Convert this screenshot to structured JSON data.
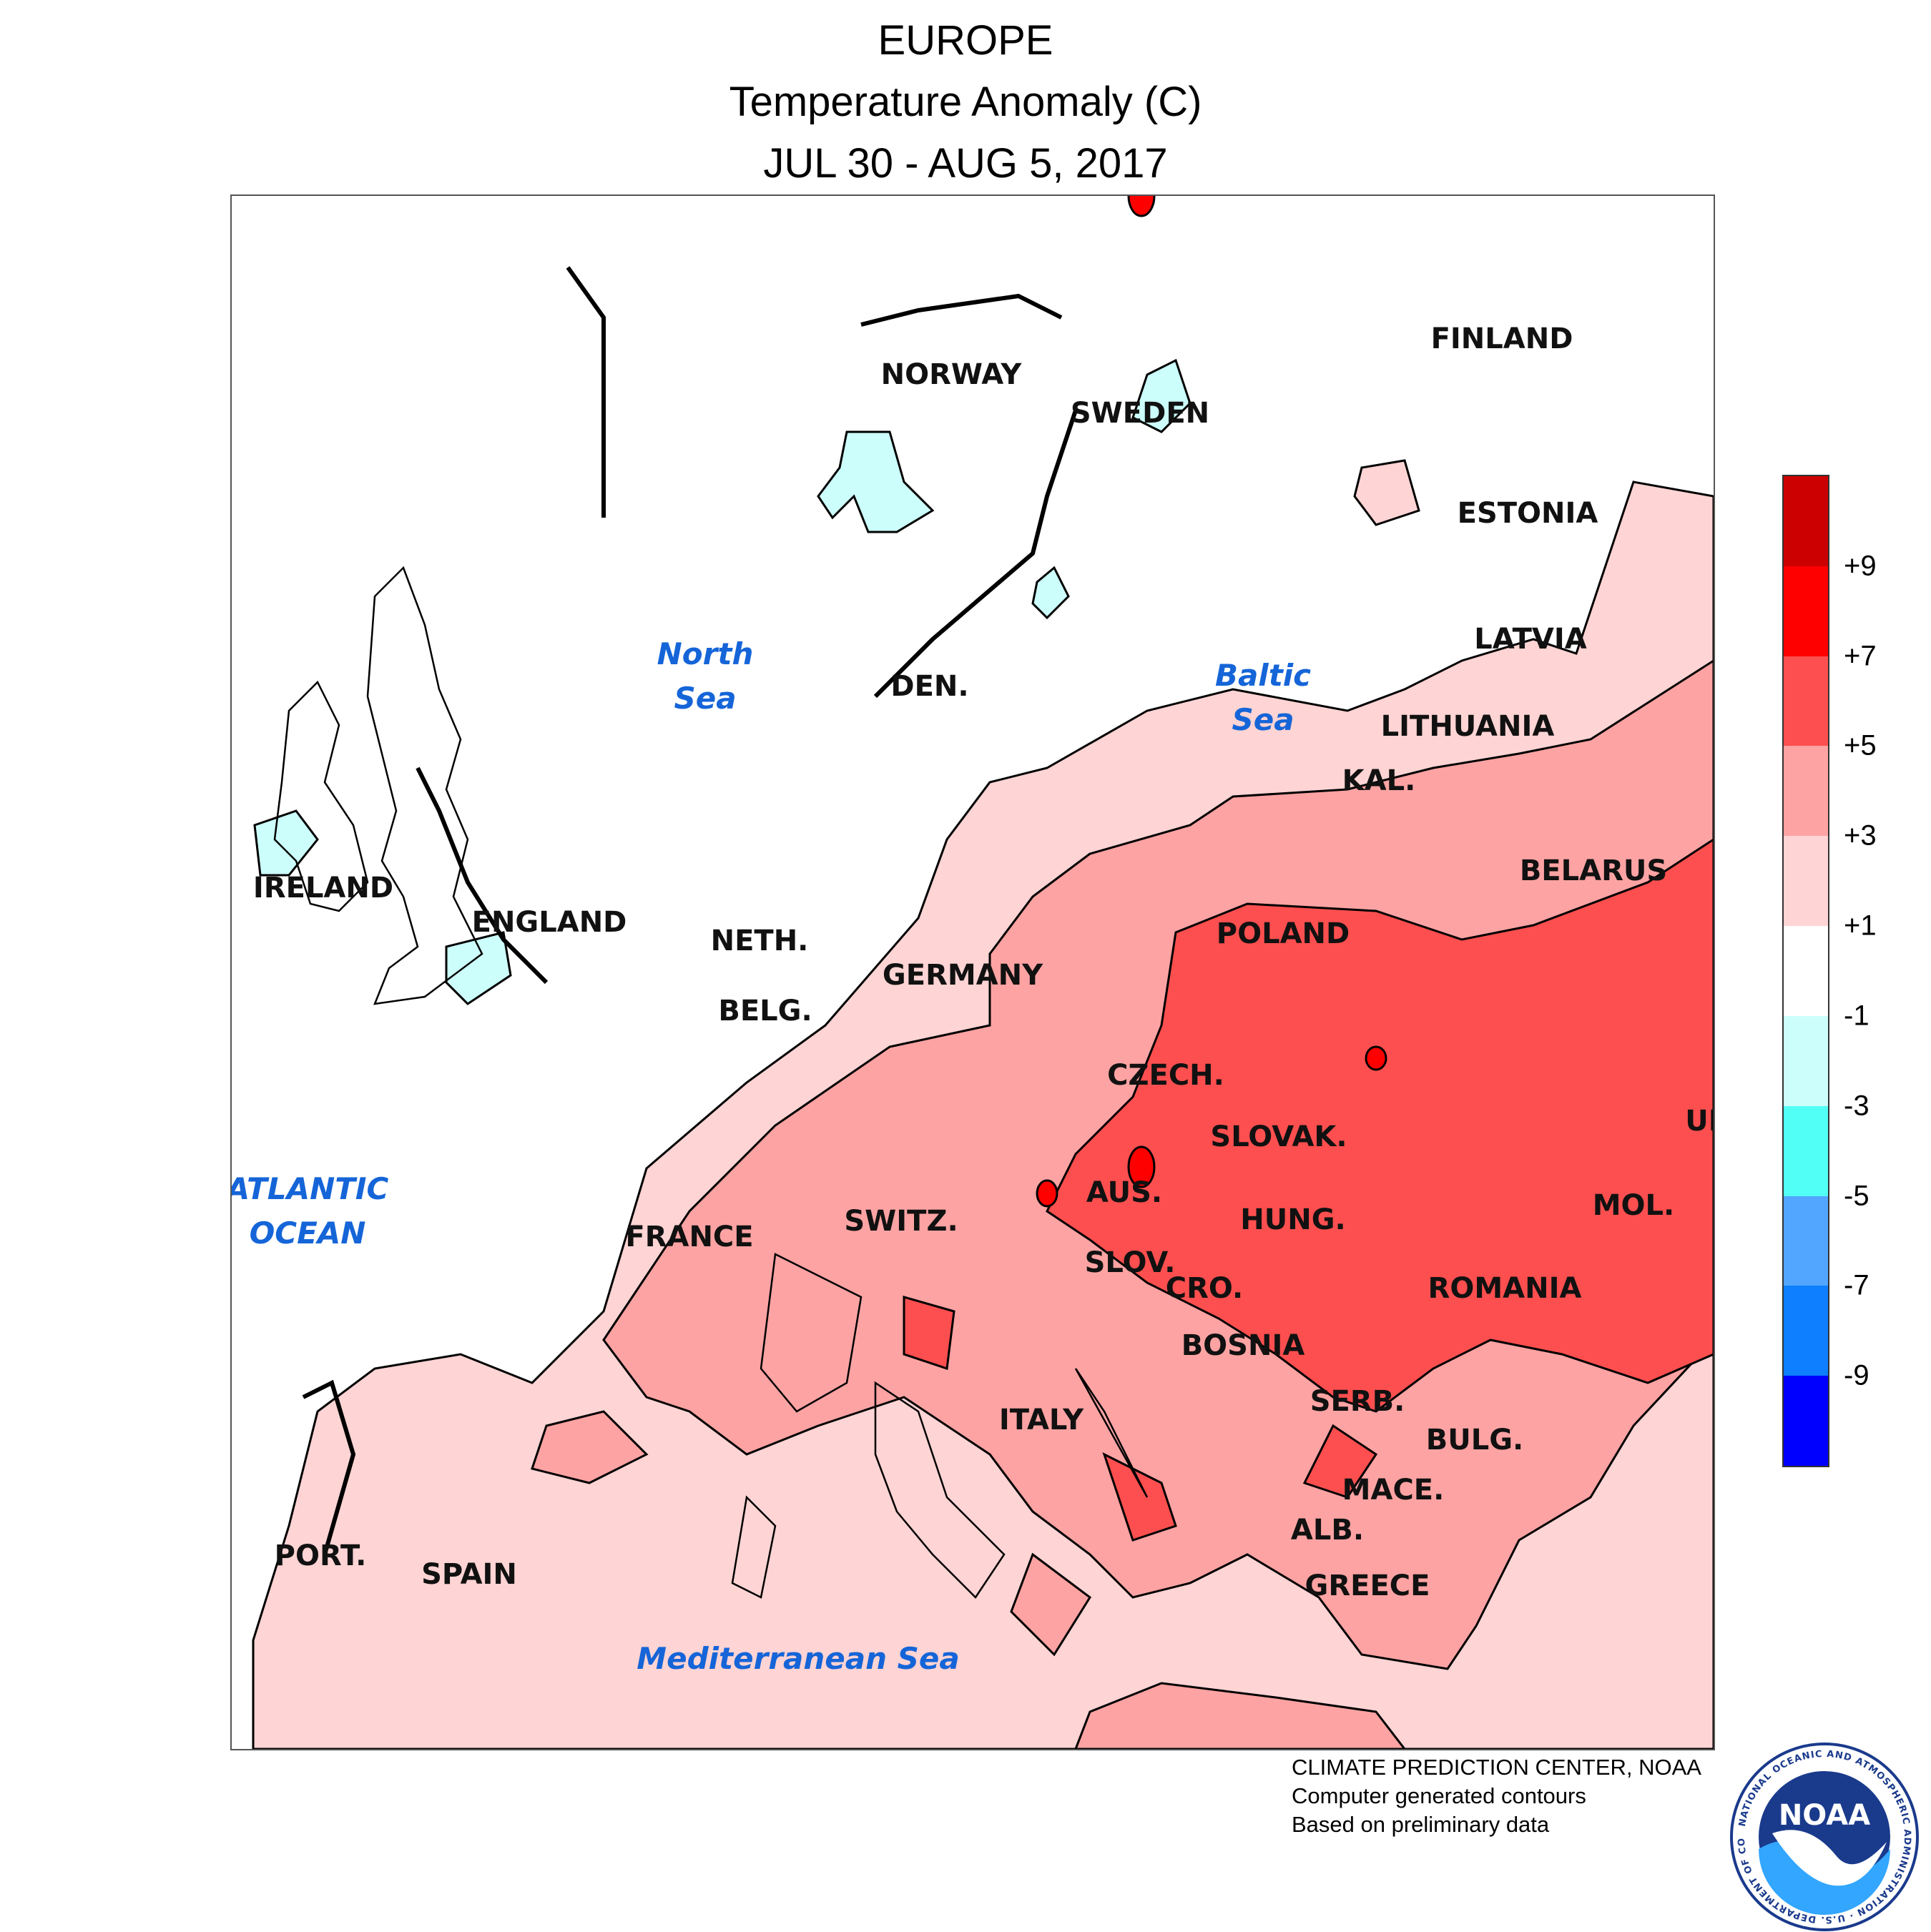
{
  "title": {
    "line1": "EUROPE",
    "line2": "Temperature Anomaly (C)",
    "line3": "JUL 30 - AUG 5, 2017"
  },
  "map": {
    "countries": [
      {
        "key": "finland",
        "label": "FINLAND"
      },
      {
        "key": "norway",
        "label": "NORWAY"
      },
      {
        "key": "sweden",
        "label": "SWEDEN"
      },
      {
        "key": "estonia",
        "label": "ESTONIA"
      },
      {
        "key": "latvia",
        "label": "LATVIA"
      },
      {
        "key": "lithuania",
        "label": "LITHUANIA"
      },
      {
        "key": "kal",
        "label": "KAL."
      },
      {
        "key": "belarus",
        "label": "BELARUS"
      },
      {
        "key": "den",
        "label": "DEN."
      },
      {
        "key": "ireland",
        "label": "IRELAND"
      },
      {
        "key": "england",
        "label": "ENGLAND"
      },
      {
        "key": "neth",
        "label": "NETH."
      },
      {
        "key": "belg",
        "label": "BELG."
      },
      {
        "key": "germany",
        "label": "GERMANY"
      },
      {
        "key": "poland",
        "label": "POLAND"
      },
      {
        "key": "czech",
        "label": "CZECH."
      },
      {
        "key": "slovak",
        "label": "SLOVAK."
      },
      {
        "key": "uk",
        "label": "UK"
      },
      {
        "key": "aus",
        "label": "AUS."
      },
      {
        "key": "switz",
        "label": "SWITZ."
      },
      {
        "key": "france",
        "label": "FRANCE"
      },
      {
        "key": "hung",
        "label": "HUNG."
      },
      {
        "key": "mol",
        "label": "MOL."
      },
      {
        "key": "slov",
        "label": "SLOV."
      },
      {
        "key": "cro",
        "label": "CRO."
      },
      {
        "key": "romania",
        "label": "ROMANIA"
      },
      {
        "key": "bosnia",
        "label": "BOSNIA"
      },
      {
        "key": "serb",
        "label": "SERB."
      },
      {
        "key": "italy",
        "label": "ITALY"
      },
      {
        "key": "bulg",
        "label": "BULG."
      },
      {
        "key": "mace",
        "label": "MACE."
      },
      {
        "key": "alb",
        "label": "ALB."
      },
      {
        "key": "port",
        "label": "PORT."
      },
      {
        "key": "spain",
        "label": "SPAIN"
      },
      {
        "key": "greece",
        "label": "GREECE"
      }
    ],
    "seas": [
      {
        "key": "north-sea",
        "lines": [
          "North",
          "Sea"
        ]
      },
      {
        "key": "baltic-sea",
        "lines": [
          "Baltic",
          "Sea"
        ]
      },
      {
        "key": "atlantic-ocean",
        "lines": [
          "ATLANTIC",
          "OCEAN"
        ]
      },
      {
        "key": "mediterranean-sea",
        "lines": [
          "Mediterranean Sea"
        ]
      }
    ],
    "anomaly_classes": [
      {
        "range": "< -9",
        "color": "#0000ff"
      },
      {
        "range": "-9 to -7",
        "color": "#0d7fff"
      },
      {
        "range": "-7 to -5",
        "color": "#52a6ff"
      },
      {
        "range": "-5 to -3",
        "color": "#52fff6"
      },
      {
        "range": "-3 to -1",
        "color": "#ccfffc"
      },
      {
        "range": "-1 to +1",
        "color": "#ffffff"
      },
      {
        "range": "+1 to +3",
        "color": "#ffd4d4"
      },
      {
        "range": "+3 to +5",
        "color": "#fda3a3"
      },
      {
        "range": "+5 to +7",
        "color": "#fd4f4f"
      },
      {
        "range": "+7 to +9",
        "color": "#ff0000"
      },
      {
        "range": "> +9",
        "color": "#cc0000"
      }
    ]
  },
  "legend": {
    "swatches_top_to_bottom": [
      "#cc0000",
      "#ff0000",
      "#fd4f4f",
      "#fda3a3",
      "#ffd4d4",
      "#ffffff",
      "#ccfffc",
      "#52fff6",
      "#52a6ff",
      "#0d7fff",
      "#0000ff"
    ],
    "labels": [
      "+9",
      "+7",
      "+5",
      "+3",
      "+1",
      "-1",
      "-3",
      "-5",
      "-7",
      "-9"
    ]
  },
  "credits": {
    "line1": "CLIMATE PREDICTION CENTER, NOAA",
    "line2": "Computer generated contours",
    "line3": "Based on preliminary data"
  },
  "logo": {
    "text": "NOAA",
    "ring_text": "NATIONAL OCEANIC AND ATMOSPHERIC ADMINISTRATION · U.S. DEPARTMENT OF COMMERCE",
    "colors": {
      "navy": "#1a3a8c",
      "sky": "#33a6ff",
      "white": "#ffffff"
    }
  }
}
